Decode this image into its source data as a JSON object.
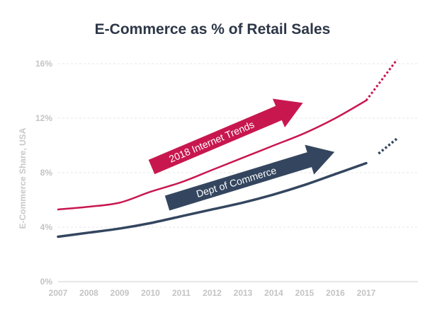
{
  "chart_data": {
    "type": "line",
    "title": "E-Commerce as % of Retail Sales",
    "ylabel": "E-Commerce Share, USA",
    "xlabel": "",
    "x": [
      "2007",
      "2008",
      "2009",
      "2010",
      "2011",
      "2012",
      "2013",
      "2014",
      "2015",
      "2016",
      "2017"
    ],
    "ylim": [
      0,
      16
    ],
    "yticks": [
      "0%",
      "4%",
      "8%",
      "12%",
      "16%"
    ],
    "grid": true,
    "series": [
      {
        "name": "2018 Internet Trends",
        "color": "#c8174f",
        "x": [
          2007,
          2008,
          2009,
          2010,
          2011,
          2012,
          2013,
          2014,
          2015,
          2016,
          2017
        ],
        "values": [
          5.3,
          5.5,
          5.8,
          6.6,
          7.3,
          8.2,
          9.1,
          10.0,
          10.9,
          12.0,
          13.3
        ],
        "projection": [
          [
            2017,
            13.3
          ],
          [
            2018,
            16.3
          ]
        ]
      },
      {
        "name": "Dept of Commerce",
        "color": "#34465f",
        "x": [
          2007,
          2008,
          2009,
          2010,
          2011,
          2012,
          2013,
          2014,
          2015,
          2016,
          2017
        ],
        "values": [
          3.3,
          3.6,
          3.9,
          4.3,
          4.8,
          5.3,
          5.8,
          6.4,
          7.1,
          7.9,
          8.7
        ],
        "projection": [
          [
            2017.4,
            9.4
          ],
          [
            2018,
            10.5
          ]
        ]
      }
    ]
  }
}
